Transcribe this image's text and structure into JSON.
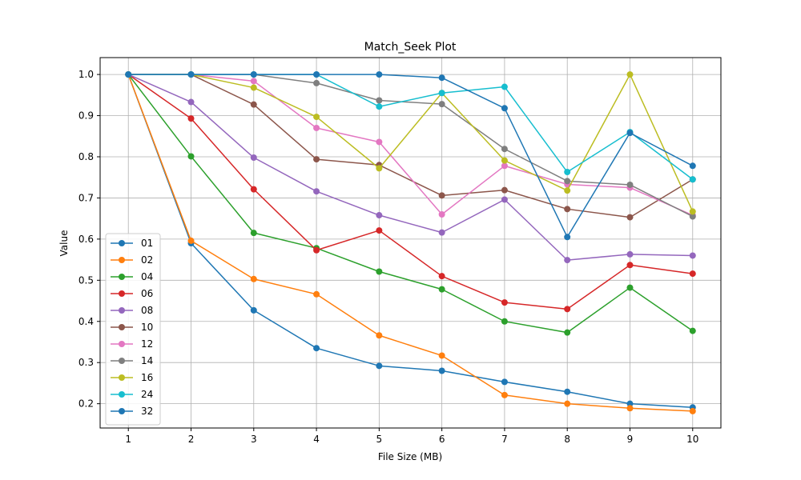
{
  "chart_data": {
    "type": "line",
    "title": "Match_Seek Plot",
    "xlabel": "File Size (MB)",
    "ylabel": "Value",
    "x": [
      1,
      2,
      3,
      4,
      5,
      6,
      7,
      8,
      9,
      10
    ],
    "xticks": [
      "1",
      "2",
      "3",
      "4",
      "5",
      "6",
      "7",
      "8",
      "9",
      "10"
    ],
    "yticks": [
      "0.2",
      "0.3",
      "0.4",
      "0.5",
      "0.6",
      "0.7",
      "0.8",
      "0.9",
      "1.0"
    ],
    "xlim": [
      0.55,
      10.45
    ],
    "ylim": [
      0.141,
      1.041
    ],
    "grid": true,
    "legend_position": "lower-left",
    "series": [
      {
        "name": "01",
        "color": "#1f77b4",
        "values": [
          1.0,
          0.59,
          0.427,
          0.335,
          0.292,
          0.28,
          0.253,
          0.229,
          0.2,
          0.191
        ]
      },
      {
        "name": "02",
        "color": "#ff7f0e",
        "values": [
          1.0,
          0.596,
          0.503,
          0.466,
          0.366,
          0.317,
          0.221,
          0.2,
          0.189,
          0.182
        ]
      },
      {
        "name": "04",
        "color": "#2ca02c",
        "values": [
          1.0,
          0.801,
          0.615,
          0.578,
          0.521,
          0.478,
          0.4,
          0.373,
          0.482,
          0.377
        ]
      },
      {
        "name": "06",
        "color": "#d62728",
        "values": [
          1.0,
          0.893,
          0.721,
          0.573,
          0.621,
          0.51,
          0.446,
          0.43,
          0.537,
          0.516
        ]
      },
      {
        "name": "08",
        "color": "#9467bd",
        "values": [
          1.0,
          0.933,
          0.798,
          0.716,
          0.658,
          0.616,
          0.696,
          0.549,
          0.563,
          0.56
        ]
      },
      {
        "name": "10",
        "color": "#8c564b",
        "values": [
          1.0,
          1.0,
          0.927,
          0.794,
          0.78,
          0.706,
          0.719,
          0.673,
          0.653,
          0.745
        ]
      },
      {
        "name": "12",
        "color": "#e377c2",
        "values": [
          1.0,
          1.0,
          0.984,
          0.87,
          0.836,
          0.66,
          0.778,
          0.733,
          0.725,
          0.658
        ]
      },
      {
        "name": "14",
        "color": "#7f7f7f",
        "values": [
          1.0,
          1.0,
          1.0,
          0.979,
          0.937,
          0.928,
          0.819,
          0.741,
          0.732,
          0.655
        ]
      },
      {
        "name": "16",
        "color": "#bcbd22",
        "values": [
          1.0,
          1.0,
          0.968,
          0.897,
          0.772,
          0.955,
          0.791,
          0.718,
          1.0,
          0.667
        ]
      },
      {
        "name": "24",
        "color": "#17becf",
        "values": [
          1.0,
          1.0,
          1.0,
          1.0,
          0.922,
          0.955,
          0.97,
          0.763,
          0.86,
          0.745
        ]
      },
      {
        "name": "32",
        "color": "#1f77b4",
        "values": [
          1.0,
          1.0,
          1.0,
          1.0,
          1.0,
          0.992,
          0.918,
          0.605,
          0.858,
          0.778
        ]
      }
    ]
  }
}
